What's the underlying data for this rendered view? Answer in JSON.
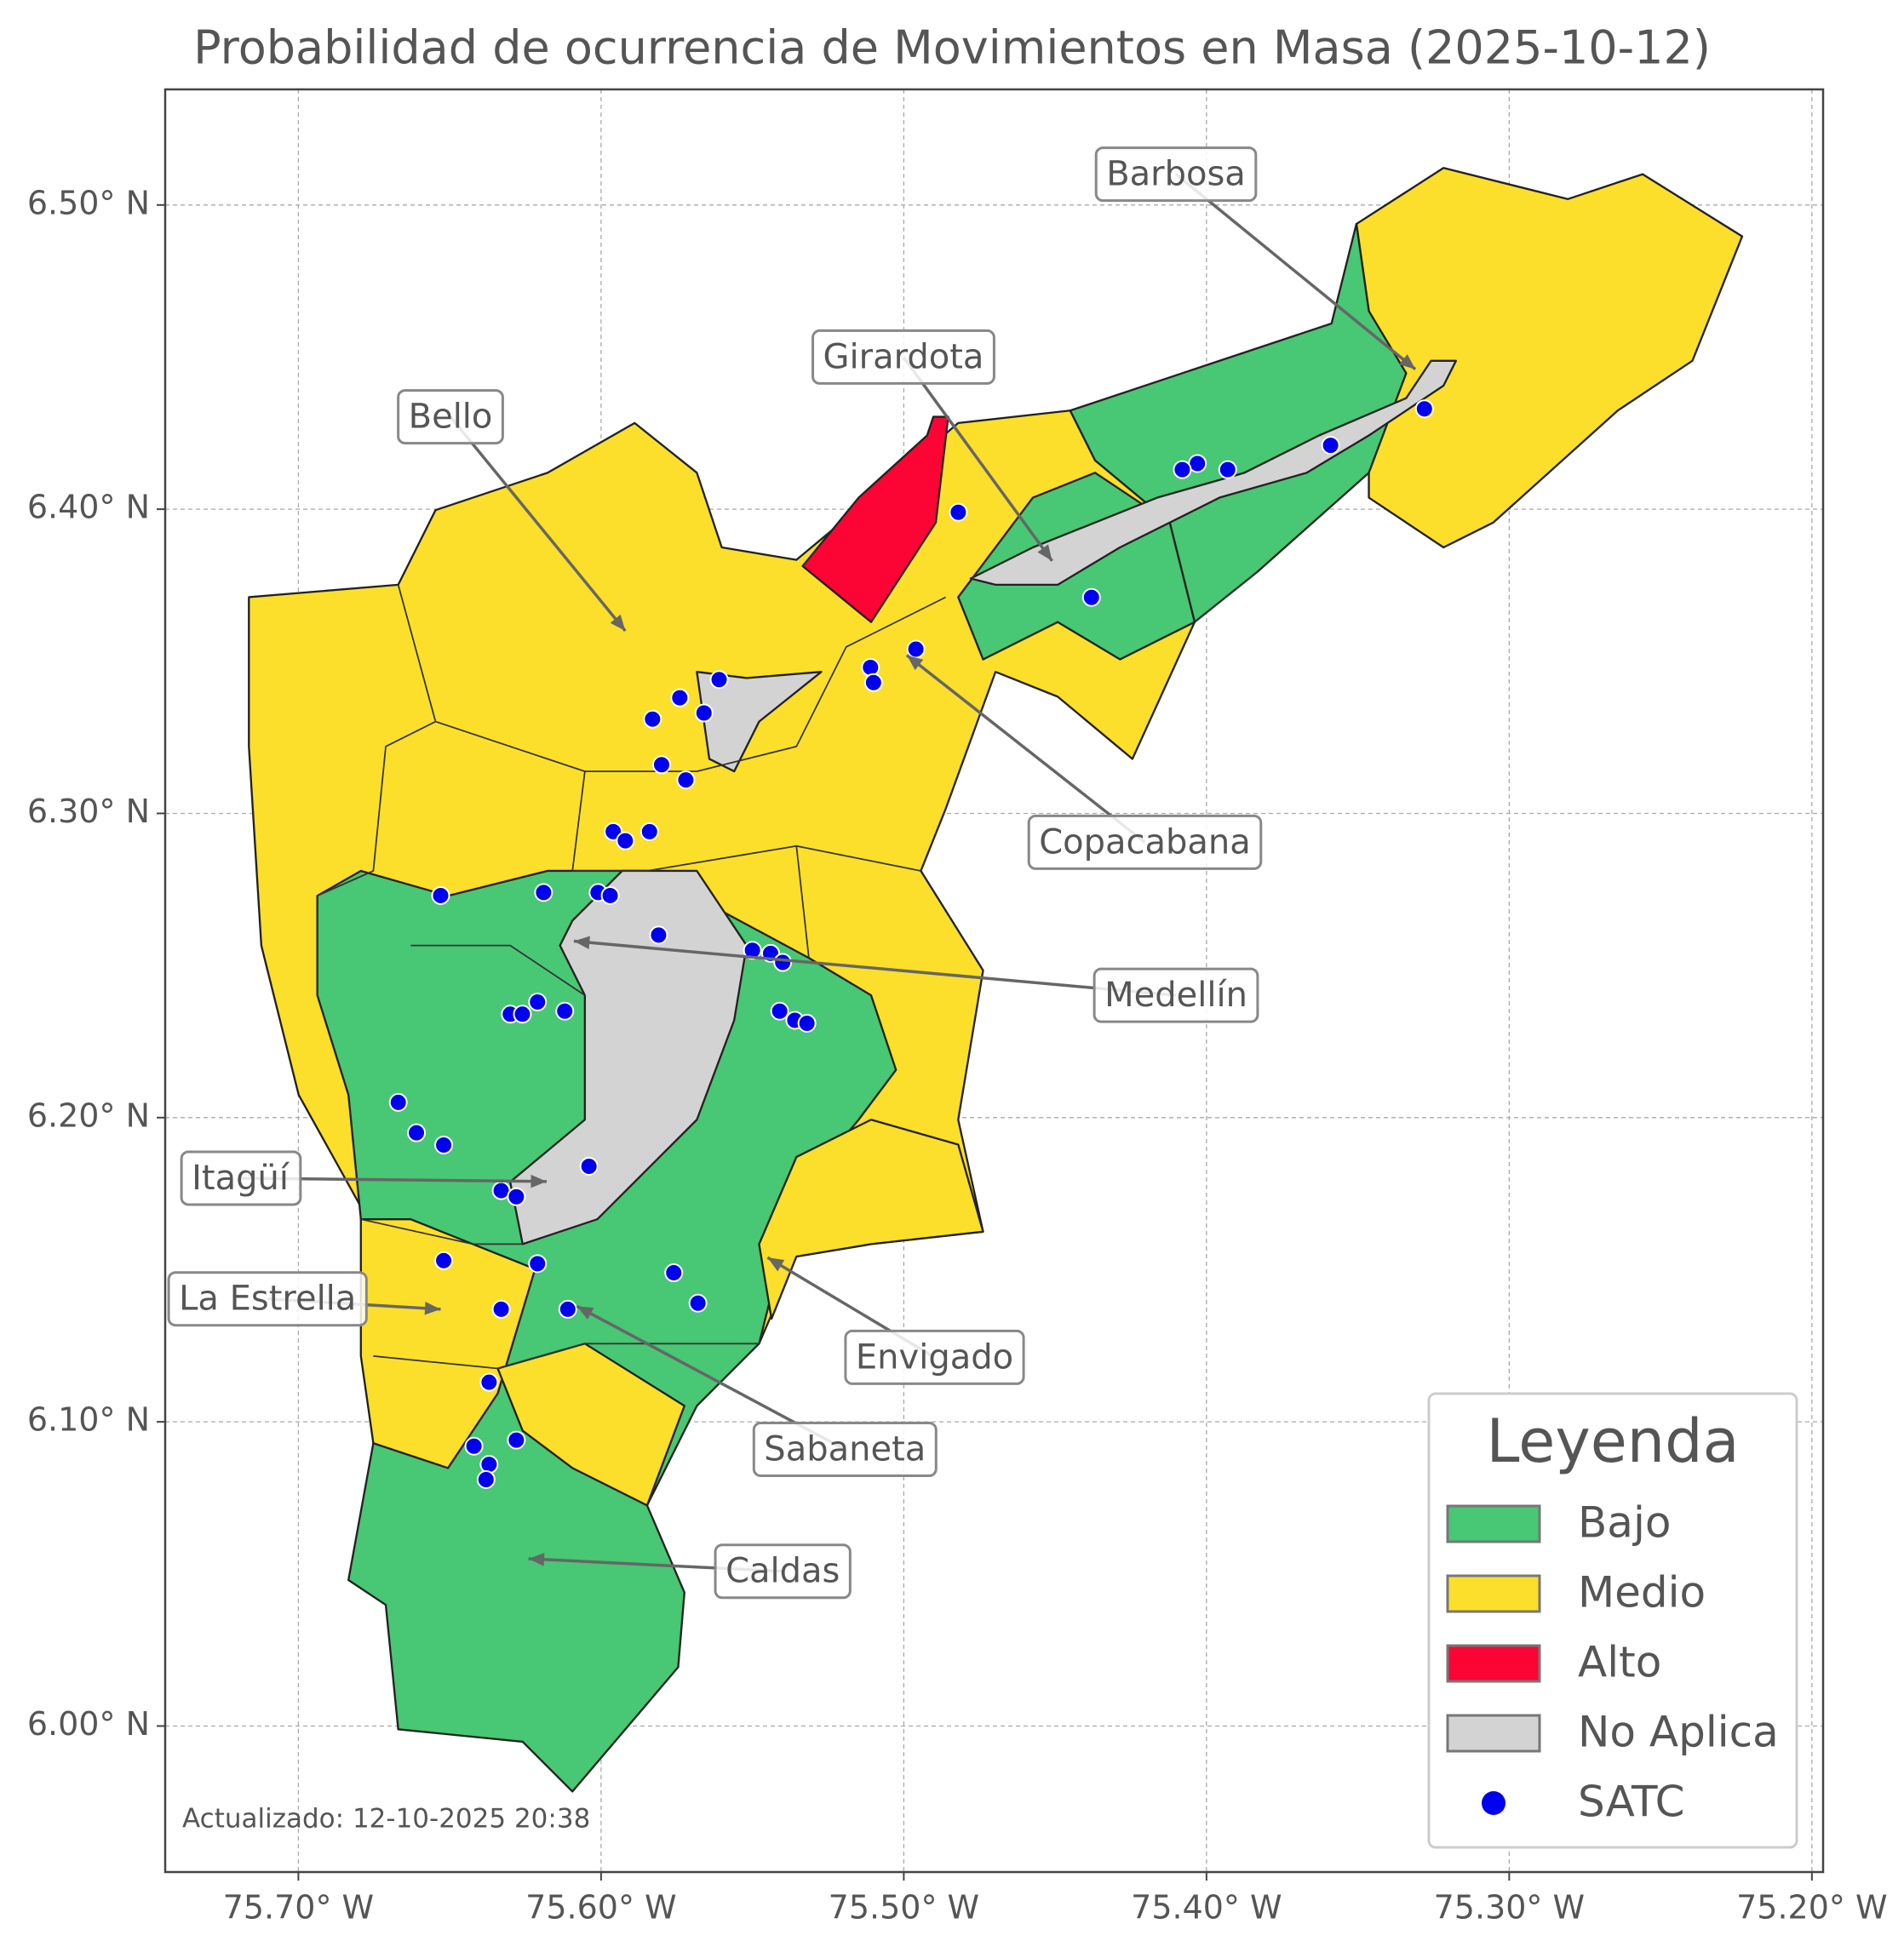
{
  "chart_data": {
    "type": "map",
    "title": "Probabilidad de ocurrencia de Movimientos en Masa (2025-10-12)",
    "xlim": [
      -75.744,
      -75.1963
    ],
    "ylim": [
      5.952,
      6.538
    ],
    "xticks": [
      {
        "value": -75.7,
        "label": "75.70° W"
      },
      {
        "value": -75.6,
        "label": "75.60° W"
      },
      {
        "value": -75.5,
        "label": "75.50° W"
      },
      {
        "value": -75.4,
        "label": "75.40° W"
      },
      {
        "value": -75.3,
        "label": "75.30° W"
      },
      {
        "value": -75.2,
        "label": "75.20° W"
      }
    ],
    "yticks": [
      {
        "value": 6.0,
        "label": "6.00° N"
      },
      {
        "value": 6.1,
        "label": "6.10° N"
      },
      {
        "value": 6.2,
        "label": "6.20° N"
      },
      {
        "value": 6.3,
        "label": "6.30° N"
      },
      {
        "value": 6.4,
        "label": "6.40° N"
      },
      {
        "value": 6.5,
        "label": "6.50° N"
      }
    ],
    "grid": true,
    "legend": {
      "title": "Leyenda",
      "position": "lower right",
      "entries": [
        {
          "name": "Bajo",
          "color": "#48c774"
        },
        {
          "name": "Medio",
          "color": "#fbdf2a"
        },
        {
          "name": "Alto",
          "color": "#fc0433"
        },
        {
          "name": "No Aplica",
          "color": "#d3d3d3"
        }
      ]
    },
    "points": {
      "name": "SATC",
      "color": "#0000ee",
      "x": [
        -75.328,
        -75.359,
        -75.393,
        -75.403,
        -75.408,
        -75.482,
        -75.438,
        -75.496,
        -75.511,
        -75.51,
        -75.561,
        -75.574,
        -75.583,
        -75.566,
        -75.58,
        -75.572,
        -75.596,
        -75.592,
        -75.584,
        -75.653,
        -75.619,
        -75.601,
        -75.597,
        -75.581,
        -75.55,
        -75.544,
        -75.54,
        -75.63,
        -75.626,
        -75.621,
        -75.612,
        -75.541,
        -75.536,
        -75.532,
        -75.667,
        -75.661,
        -75.652,
        -75.604,
        -75.633,
        -75.628,
        -75.652,
        -75.621,
        -75.576,
        -75.568,
        -75.633,
        -75.611,
        -75.637,
        -75.642,
        -75.628,
        -75.637,
        -75.638
      ],
      "y": [
        6.433,
        6.421,
        6.413,
        6.415,
        6.413,
        6.399,
        6.371,
        6.354,
        6.348,
        6.343,
        6.344,
        6.338,
        6.331,
        6.333,
        6.316,
        6.311,
        6.294,
        6.291,
        6.294,
        6.273,
        6.274,
        6.274,
        6.273,
        6.26,
        6.255,
        6.254,
        6.251,
        6.234,
        6.234,
        6.238,
        6.235,
        6.235,
        6.232,
        6.231,
        6.205,
        6.195,
        6.191,
        6.184,
        6.176,
        6.174,
        6.153,
        6.152,
        6.149,
        6.139,
        6.137,
        6.137,
        6.113,
        6.092,
        6.094,
        6.086,
        6.081
      ]
    },
    "annotations": [
      {
        "text": "Barbosa",
        "x": -75.331,
        "y": 6.446
      },
      {
        "text": "Girardota",
        "x": -75.451,
        "y": 6.383
      },
      {
        "text": "Bello",
        "x": -75.592,
        "y": 6.36
      },
      {
        "text": "Copacabana",
        "x": -75.499,
        "y": 6.352
      },
      {
        "text": "Medellín",
        "x": -75.609,
        "y": 6.258
      },
      {
        "text": "Itagüí",
        "x": -75.618,
        "y": 6.179
      },
      {
        "text": "La Estrella",
        "x": -75.653,
        "y": 6.137
      },
      {
        "text": "Envigado",
        "x": -75.545,
        "y": 6.154
      },
      {
        "text": "Sabaneta",
        "x": -75.608,
        "y": 6.138
      },
      {
        "text": "Caldas",
        "x": -75.624,
        "y": 6.055
      }
    ],
    "footnote": "Actualizado: 12-10-2025 20:38"
  }
}
